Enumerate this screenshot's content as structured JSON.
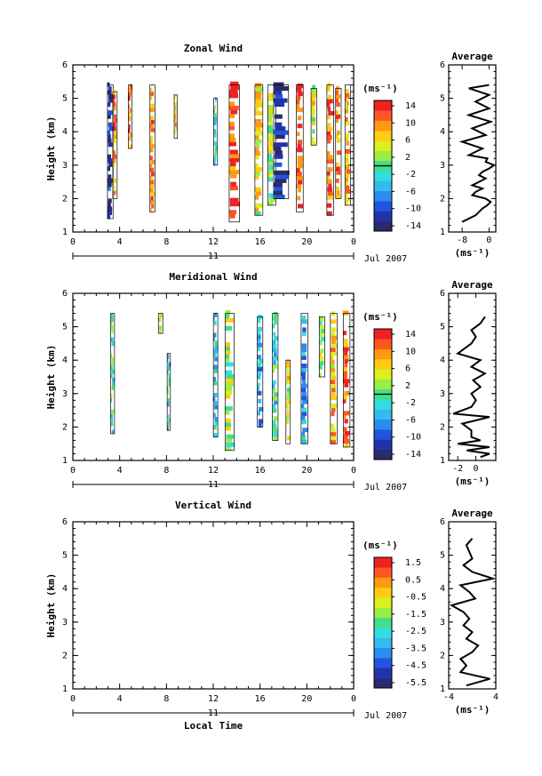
{
  "panels": [
    {
      "title": "Zonal Wind",
      "ylabel": "Height (km)",
      "cbar_unit": "(ms⁻¹)",
      "cbar_ticks": [
        "14",
        "10",
        "6",
        "2",
        "-2",
        "-6",
        "-10",
        "-14"
      ],
      "xlabel": "",
      "date_num": "11",
      "date_label": "Jul 2007",
      "avg_title": "Average",
      "avg_unit": "(ms⁻¹)",
      "avg_xticks": [
        "-8",
        "0"
      ]
    },
    {
      "title": "Meridional Wind",
      "ylabel": "Height (km)",
      "cbar_unit": "(ms⁻¹)",
      "cbar_ticks": [
        "14",
        "10",
        "6",
        "2",
        "-2",
        "-6",
        "-10",
        "-14"
      ],
      "xlabel": "",
      "date_num": "11",
      "date_label": "Jul 2007",
      "avg_title": "Average",
      "avg_unit": "(ms⁻¹)",
      "avg_xticks": [
        "-2",
        "0"
      ]
    },
    {
      "title": "Vertical Wind",
      "ylabel": "Height (km)",
      "cbar_unit": "(ms⁻¹)",
      "cbar_ticks": [
        "1.5",
        "0.5",
        "-0.5",
        "-1.5",
        "-2.5",
        "-3.5",
        "-4.5",
        "-5.5"
      ],
      "xlabel": "Local Time",
      "date_num": "11",
      "date_label": "Jul 2007",
      "avg_title": "Average",
      "avg_unit": "(ms⁻¹)",
      "avg_xticks": [
        "-4",
        "4"
      ]
    }
  ],
  "chart_data": [
    {
      "type": "heatmap",
      "title": "Zonal Wind",
      "ylabel": "Height (km)",
      "x_ticks": [
        "0",
        "4",
        "8",
        "12",
        "16",
        "20",
        "0"
      ],
      "xlim": [
        0,
        24
      ],
      "y_ticks": [
        "1",
        "2",
        "3",
        "4",
        "5",
        "6"
      ],
      "ylim": [
        1,
        6
      ],
      "colorbar": {
        "unit": "ms^-1",
        "range": [
          -16,
          16
        ],
        "colors": [
          "#2a2a6e",
          "#2233aa",
          "#2255dd",
          "#2a8cf0",
          "#33bbf0",
          "#33dddd",
          "#44dd88",
          "#99ee44",
          "#ddee22",
          "#ffcc11",
          "#ff9911",
          "#ff5522",
          "#ee2222"
        ]
      },
      "columns": [
        {
          "t": 3.2,
          "w": 0.4,
          "h": [
            1.4,
            5.4
          ],
          "v": -13
        },
        {
          "t": 3.6,
          "w": 0.3,
          "h": [
            2.0,
            5.2
          ],
          "v": 10
        },
        {
          "t": 4.9,
          "w": 0.25,
          "h": [
            3.5,
            5.4
          ],
          "v": 13
        },
        {
          "t": 6.8,
          "w": 0.35,
          "h": [
            1.6,
            5.4
          ],
          "v": 12
        },
        {
          "t": 8.8,
          "w": 0.2,
          "h": [
            3.8,
            5.1
          ],
          "v": 8
        },
        {
          "t": 12.2,
          "w": 0.25,
          "h": [
            3.0,
            5.0
          ],
          "v": -2
        },
        {
          "t": 13.8,
          "w": 0.8,
          "h": [
            1.3,
            5.4
          ],
          "v": 12
        },
        {
          "t": 15.9,
          "w": 0.6,
          "h": [
            1.5,
            5.4
          ],
          "v": 6
        },
        {
          "t": 17.0,
          "w": 0.6,
          "h": [
            1.8,
            5.4
          ],
          "v": 2
        },
        {
          "t": 17.8,
          "w": 1.2,
          "h": [
            2.0,
            5.4
          ],
          "v": -14
        },
        {
          "t": 19.4,
          "w": 0.5,
          "h": [
            1.6,
            5.4
          ],
          "v": 13
        },
        {
          "t": 20.6,
          "w": 0.4,
          "h": [
            3.6,
            5.3
          ],
          "v": 4
        },
        {
          "t": 22.0,
          "w": 0.5,
          "h": [
            1.5,
            5.4
          ],
          "v": 12
        },
        {
          "t": 22.7,
          "w": 0.4,
          "h": [
            2.0,
            5.3
          ],
          "v": 10
        },
        {
          "t": 23.5,
          "w": 0.4,
          "h": [
            1.8,
            5.4
          ],
          "v": 8
        }
      ],
      "average": {
        "title": "Average",
        "xlabel": "(ms^-1)",
        "x_ticks": [
          "-8",
          "0"
        ],
        "xlim": [
          -12,
          2
        ],
        "height": [
          1.3,
          1.5,
          1.7,
          1.8,
          1.9,
          2.0,
          2.1,
          2.2,
          2.3,
          2.4,
          2.5,
          2.6,
          2.7,
          2.8,
          2.9,
          3.0,
          3.1,
          3.2,
          3.3,
          3.5,
          3.7,
          3.9,
          4.1,
          4.3,
          4.5,
          4.7,
          4.9,
          5.1,
          5.3,
          5.4
        ],
        "value": [
          -8,
          -4,
          -2,
          -0.5,
          0.5,
          -1,
          -5,
          -4,
          -2,
          -5,
          -3,
          -1,
          -3,
          -2,
          0,
          1.5,
          -1,
          -0.5,
          -6,
          -2,
          -8,
          -1,
          -5,
          0.5,
          -6,
          0,
          -4,
          0,
          -6,
          0
        ]
      }
    },
    {
      "type": "heatmap",
      "title": "Meridional Wind",
      "ylabel": "Height (km)",
      "x_ticks": [
        "0",
        "4",
        "8",
        "12",
        "16",
        "20",
        "0"
      ],
      "xlim": [
        0,
        24
      ],
      "y_ticks": [
        "1",
        "2",
        "3",
        "4",
        "5",
        "6"
      ],
      "ylim": [
        1,
        6
      ],
      "colorbar": {
        "unit": "ms^-1",
        "range": [
          -16,
          16
        ],
        "colors": [
          "#2a2a6e",
          "#2233aa",
          "#2255dd",
          "#2a8cf0",
          "#33bbf0",
          "#33dddd",
          "#44dd88",
          "#99ee44",
          "#ddee22",
          "#ffcc11",
          "#ff9911",
          "#ff5522",
          "#ee2222"
        ]
      },
      "columns": [
        {
          "t": 3.4,
          "w": 0.25,
          "h": [
            1.8,
            5.4
          ],
          "v": -1
        },
        {
          "t": 7.5,
          "w": 0.3,
          "h": [
            4.8,
            5.4
          ],
          "v": 6
        },
        {
          "t": 8.2,
          "w": 0.2,
          "h": [
            1.9,
            4.2
          ],
          "v": -3
        },
        {
          "t": 12.2,
          "w": 0.3,
          "h": [
            1.7,
            5.4
          ],
          "v": -4
        },
        {
          "t": 13.4,
          "w": 0.7,
          "h": [
            1.3,
            5.4
          ],
          "v": 3
        },
        {
          "t": 16.0,
          "w": 0.4,
          "h": [
            2.0,
            5.3
          ],
          "v": -5
        },
        {
          "t": 17.3,
          "w": 0.4,
          "h": [
            1.6,
            5.4
          ],
          "v": -2
        },
        {
          "t": 18.4,
          "w": 0.3,
          "h": [
            1.5,
            4.0
          ],
          "v": 6
        },
        {
          "t": 19.8,
          "w": 0.5,
          "h": [
            1.5,
            5.4
          ],
          "v": -6
        },
        {
          "t": 21.3,
          "w": 0.4,
          "h": [
            3.5,
            5.3
          ],
          "v": 2
        },
        {
          "t": 22.3,
          "w": 0.5,
          "h": [
            1.5,
            5.4
          ],
          "v": 8
        },
        {
          "t": 23.4,
          "w": 0.5,
          "h": [
            1.4,
            5.4
          ],
          "v": 12
        }
      ],
      "average": {
        "title": "Average",
        "xlabel": "(ms^-1)",
        "x_ticks": [
          "-2",
          "0"
        ],
        "xlim": [
          -3,
          2.2
        ],
        "height": [
          1.1,
          1.2,
          1.3,
          1.4,
          1.5,
          1.6,
          1.7,
          1.9,
          2.1,
          2.3,
          2.4,
          2.6,
          2.8,
          3.0,
          3.2,
          3.4,
          3.6,
          3.8,
          4.0,
          4.2,
          4.3,
          4.5,
          4.7,
          4.9,
          5.1,
          5.3
        ],
        "value": [
          0.5,
          1.5,
          -1,
          1.5,
          -2,
          0.5,
          -0.5,
          -0.5,
          -1.5,
          1.5,
          -2.5,
          -0.5,
          0,
          -0.5,
          0.5,
          -0.3,
          1,
          -0.5,
          0.5,
          -2,
          -1.5,
          -0.5,
          0,
          -0.5,
          0.5,
          1
        ]
      }
    },
    {
      "type": "heatmap",
      "title": "Vertical Wind",
      "ylabel": "Height (km)",
      "xlabel": "Local Time",
      "x_ticks": [
        "0",
        "4",
        "8",
        "12",
        "16",
        "20",
        "0"
      ],
      "xlim": [
        0,
        24
      ],
      "y_ticks": [
        "1",
        "2",
        "3",
        "4",
        "5",
        "6"
      ],
      "ylim": [
        1,
        6
      ],
      "colorbar": {
        "unit": "ms^-1",
        "range": [
          -6,
          2
        ],
        "colors": [
          "#2a2a6e",
          "#2233aa",
          "#2255dd",
          "#2a8cf0",
          "#33bbf0",
          "#33dddd",
          "#44dd88",
          "#99ee44",
          "#ddee22",
          "#ffcc11",
          "#ff9911",
          "#ff5522",
          "#ee2222"
        ]
      },
      "columns": [],
      "average": {
        "title": "Average",
        "xlabel": "(ms^-1)",
        "x_ticks": [
          "-4",
          "4"
        ],
        "xlim": [
          -4,
          4
        ],
        "height": [
          1.1,
          1.3,
          1.5,
          1.7,
          1.9,
          2.1,
          2.3,
          2.5,
          2.7,
          2.9,
          3.1,
          3.3,
          3.5,
          3.7,
          3.9,
          4.1,
          4.3,
          4.5,
          4.7,
          4.9,
          5.1,
          5.3,
          5.5
        ],
        "value": [
          -1,
          3,
          -2,
          -1,
          -2,
          0,
          1,
          -1,
          0,
          -1.5,
          -0.5,
          -1.5,
          -3.5,
          0.5,
          -0.5,
          -2,
          3.5,
          0,
          -1.5,
          0,
          -0.5,
          -1,
          0
        ]
      }
    }
  ]
}
